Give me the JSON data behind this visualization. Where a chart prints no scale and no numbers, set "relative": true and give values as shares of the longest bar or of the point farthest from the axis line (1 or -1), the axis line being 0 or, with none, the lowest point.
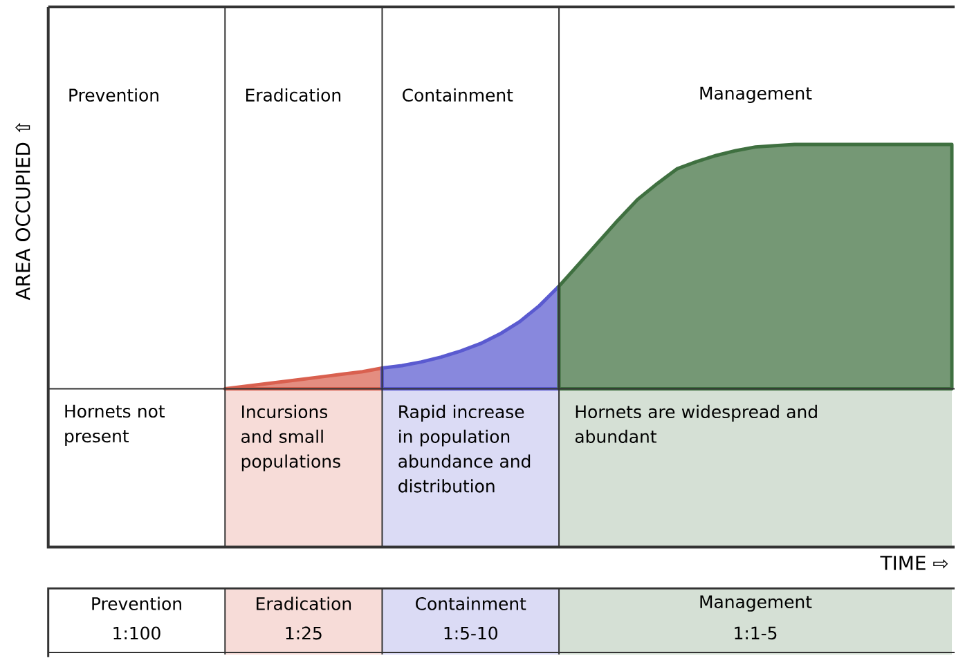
{
  "chart_data": {
    "type": "area",
    "relative": true,
    "grid": true,
    "ylabel": "AREA OCCUPIED ⇧",
    "categories": [
      null,
      null,
      null,
      null,
      null,
      null,
      null,
      null,
      null,
      null,
      null,
      null,
      null,
      null,
      null,
      null,
      null,
      null,
      null,
      null,
      null,
      null,
      null,
      null,
      null,
      null,
      null,
      null,
      null,
      null,
      null,
      null,
      null,
      null,
      null,
      null,
      null,
      null,
      null,
      null,
      null,
      null,
      null,
      null,
      null,
      null,
      null
    ],
    "series": [
      {
        "color": "#d9604f",
        "values": [
          null,
          null,
          null,
          null,
          null,
          null,
          null,
          null,
          null,
          0.0,
          0.01,
          0.02,
          0.03,
          0.04,
          0.05,
          0.06,
          0.07,
          0.085,
          null,
          null,
          null,
          null,
          null,
          null,
          null,
          null,
          null,
          null,
          null,
          null,
          null,
          null,
          null,
          null,
          null,
          null,
          null,
          null,
          null,
          null,
          null,
          null,
          null,
          null,
          null,
          null,
          null
        ]
      },
      {
        "color": "#5a5ad0",
        "values": [
          null,
          null,
          null,
          null,
          null,
          null,
          null,
          null,
          null,
          null,
          null,
          null,
          null,
          null,
          null,
          null,
          null,
          0.085,
          0.095,
          0.11,
          0.13,
          0.155,
          0.185,
          0.225,
          0.275,
          0.34,
          0.42,
          null,
          null,
          null,
          null,
          null,
          null,
          null,
          null,
          null,
          null,
          null,
          null,
          null,
          null,
          null,
          null,
          null,
          null,
          null,
          null
        ]
      },
      {
        "color": "#3f7040",
        "values": [
          null,
          null,
          null,
          null,
          null,
          null,
          null,
          null,
          null,
          null,
          null,
          null,
          null,
          null,
          null,
          null,
          null,
          null,
          null,
          null,
          null,
          null,
          null,
          null,
          null,
          null,
          0.42,
          0.51,
          0.6,
          0.69,
          0.775,
          0.84,
          0.9,
          0.93,
          0.955,
          0.975,
          0.99,
          0.995,
          1,
          1,
          1,
          1,
          1,
          1,
          1,
          1,
          1
        ]
      }
    ],
    "annotations": [
      "Prevention",
      "Eradication",
      "Containment",
      "Management",
      "Hornets not present",
      "Incursions and small populations",
      "Rapid increase in population abundance and distribution",
      "Hornets are widespread and abundant",
      "Prevention",
      "1:100",
      "Eradication",
      "1:25",
      "Containment",
      "1:5-10",
      "Management",
      "1:1-5",
      "TIME ⇨"
    ]
  }
}
